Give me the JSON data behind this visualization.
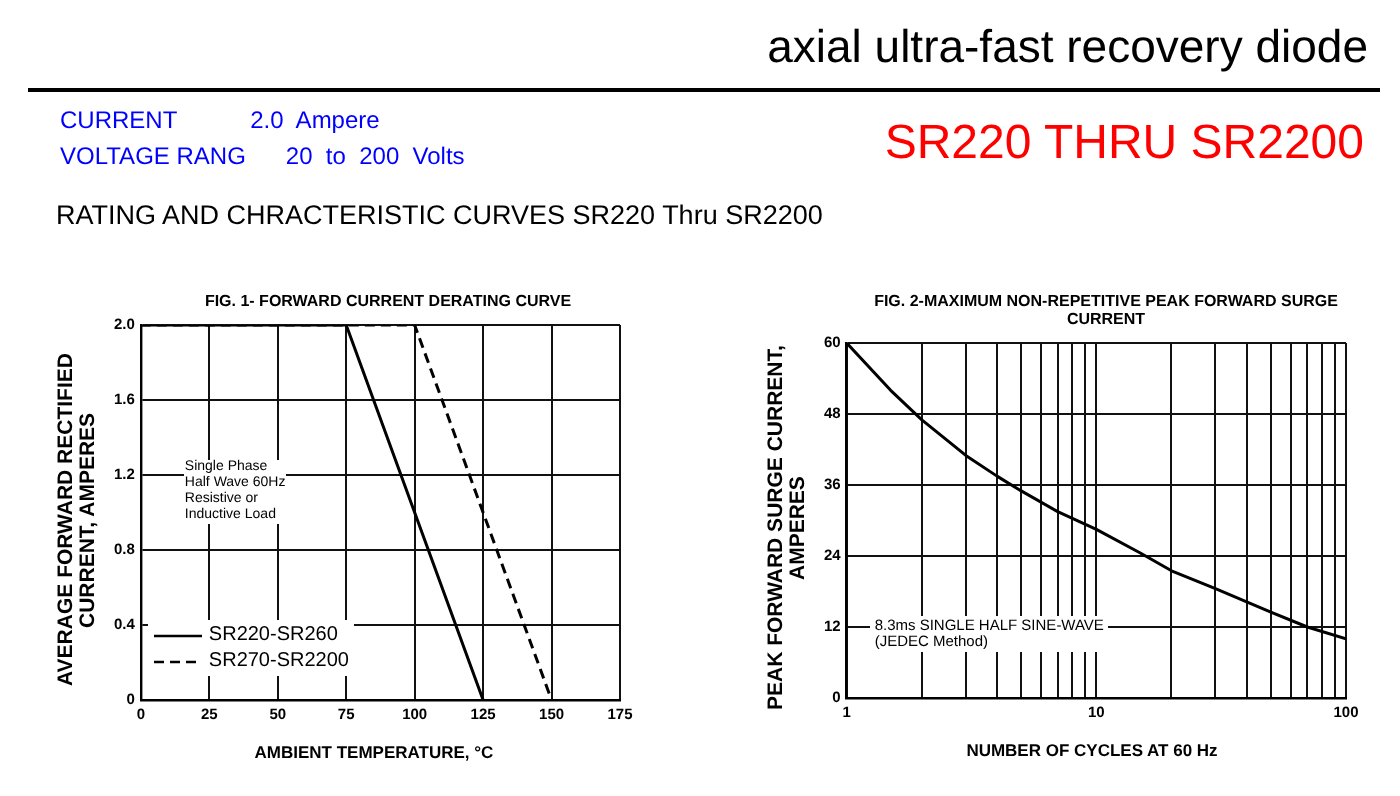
{
  "chart_data": [
    {
      "type": "other",
      "title": "axial ultra-fast recovery diode",
      "subtitle": "RATING AND CHRACTERISTIC CURVES SR220 Thru SR2200",
      "annotations": [
        "CURRENT           2.0  Ampere",
        "VOLTAGE RANG      20  to  200  Volts",
        "SR220 THRU SR2200"
      ]
    },
    {
      "type": "line",
      "title": "FIG. 1- FORWARD CURRENT DERATING CURVE",
      "xlabel": "AMBIENT TEMPERATURE, °C",
      "ylabel": "AVERAGE FORWARD RECTIFIED CURRENT, AMPERES",
      "series": [
        {
          "name": "SR220-SR260",
          "color": "#000000",
          "line_style": "solid",
          "x": [
            0,
            75,
            125
          ],
          "values": [
            2,
            2,
            0
          ]
        },
        {
          "name": "SR270-SR2200",
          "color": "#000000",
          "line_style": "dashed",
          "x": [
            0,
            100,
            150
          ],
          "values": [
            2,
            2,
            0
          ]
        }
      ],
      "xlim": [
        0,
        175
      ],
      "xticks": [
        0,
        25,
        50,
        75,
        100,
        125,
        150,
        175
      ],
      "ylim": [
        0,
        2
      ],
      "yticks": [
        0,
        0.4,
        0.8,
        1.2,
        1.6,
        {
          "value": 2,
          "label": "2.0"
        }
      ],
      "grid": true,
      "legend": "bottom left",
      "marker": "none",
      "annotations": [
        "Single Phase",
        "Half Wave 60Hz",
        "Resistive or",
        "Inductive Load"
      ]
    },
    {
      "type": "line",
      "title": "FIG. 2-MAXIMUM NON-REPETITIVE PEAK FORWARD SURGE CURRENT",
      "xlabel": "NUMBER OF CYCLES AT 60 Hz",
      "ylabel": "PEAK  FORWARD SURGE CURRENT, AMPERES",
      "series": [
        {
          "color": "#000000",
          "x": [
            1,
            1.5,
            2,
            3,
            4,
            5,
            7,
            10,
            15,
            20,
            30,
            50,
            70,
            100
          ],
          "values": [
            60,
            52,
            47,
            41,
            37.5,
            35,
            31.5,
            28.5,
            24.5,
            21.5,
            18.5,
            14.5,
            12,
            10
          ]
        }
      ],
      "log": "x",
      "xlim": [
        1,
        100
      ],
      "xticks": [
        1,
        {
          "value": 2,
          "label": null
        },
        {
          "value": 3,
          "label": null
        },
        {
          "value": 4,
          "label": null
        },
        {
          "value": 5,
          "label": null
        },
        {
          "value": 6,
          "label": null
        },
        {
          "value": 7,
          "label": null
        },
        {
          "value": 8,
          "label": null
        },
        {
          "value": 9,
          "label": null
        },
        10,
        {
          "value": 20,
          "label": null
        },
        {
          "value": 30,
          "label": null
        },
        {
          "value": 40,
          "label": null
        },
        {
          "value": 50,
          "label": null
        },
        {
          "value": 60,
          "label": null
        },
        {
          "value": 70,
          "label": null
        },
        {
          "value": 80,
          "label": null
        },
        {
          "value": 90,
          "label": null
        },
        100
      ],
      "ylim": [
        0,
        60
      ],
      "yticks": [
        0,
        12,
        24,
        36,
        48,
        60
      ],
      "grid": true,
      "marker": "none",
      "line_style": "solid",
      "annotations": [
        "8.3ms SINGLE HALF SINE-WAVE",
        "(JEDEC Method)"
      ]
    }
  ]
}
